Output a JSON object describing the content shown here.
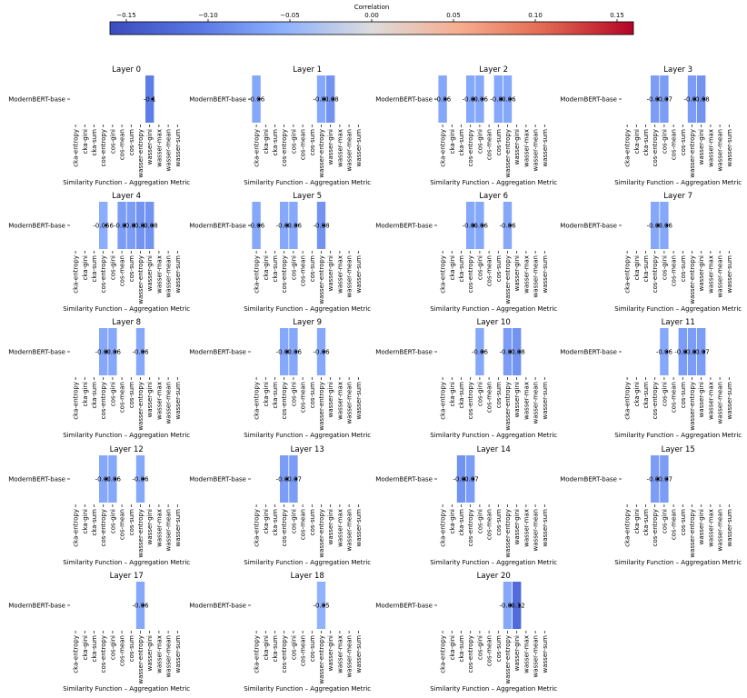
{
  "colorbar": {
    "label": "Correlation",
    "ticks": [
      "−0.15",
      "−0.10",
      "−0.05",
      "0.00",
      "0.05",
      "0.10",
      "0.15"
    ],
    "tick_values": [
      -0.15,
      -0.1,
      -0.05,
      0.0,
      0.05,
      0.1,
      0.15
    ],
    "range": [
      -0.16,
      0.16
    ],
    "colors": [
      "#3b4cc0",
      "#7396f5",
      "#aac7fd",
      "#dddcdc",
      "#f7b89c",
      "#e7745b",
      "#b40426"
    ]
  },
  "chart_data": {
    "type": "heatmap",
    "row_label": "ModernBERT-base",
    "xlabel": "Similarity Function – Aggregation Metric",
    "columns": [
      "cka-entropy",
      "cka-gini",
      "cka-sum",
      "cos-entropy",
      "cos-gini",
      "cos-mean",
      "cos-sum",
      "wasser-entropy",
      "wasser-gini",
      "wasser-max",
      "wasser-mean",
      "wasser-sum"
    ],
    "panels": [
      {
        "title": "Layer 0",
        "cells": [
          null,
          null,
          null,
          null,
          null,
          null,
          null,
          null,
          -0.1,
          null,
          null,
          null
        ]
      },
      {
        "title": "Layer 1",
        "cells": [
          -0.06,
          null,
          null,
          null,
          null,
          null,
          null,
          -0.06,
          -0.08,
          null,
          null,
          null
        ]
      },
      {
        "title": "Layer 2",
        "cells": [
          -0.06,
          null,
          null,
          -0.06,
          -0.06,
          null,
          -0.06,
          -0.06,
          null,
          null,
          null,
          null
        ]
      },
      {
        "title": "Layer 3",
        "cells": [
          null,
          null,
          null,
          -0.07,
          -0.07,
          null,
          null,
          -0.07,
          -0.08,
          null,
          null,
          null
        ]
      },
      {
        "title": "Layer 4",
        "cells": [
          null,
          null,
          null,
          -0.056,
          null,
          -0.07,
          -0.07,
          -0.08,
          -0.08,
          null,
          null,
          null
        ]
      },
      {
        "title": "Layer 5",
        "cells": [
          -0.06,
          null,
          null,
          -0.06,
          -0.06,
          null,
          null,
          -0.08,
          null,
          null,
          null,
          null
        ]
      },
      {
        "title": "Layer 6",
        "cells": [
          null,
          null,
          null,
          -0.06,
          -0.06,
          null,
          null,
          -0.06,
          null,
          null,
          null,
          null
        ]
      },
      {
        "title": "Layer 7",
        "cells": [
          null,
          null,
          null,
          -0.06,
          -0.06,
          null,
          null,
          null,
          null,
          null,
          null,
          null
        ]
      },
      {
        "title": "Layer 8",
        "cells": [
          null,
          null,
          null,
          -0.06,
          -0.06,
          null,
          null,
          -0.06,
          null,
          null,
          null,
          null
        ]
      },
      {
        "title": "Layer 9",
        "cells": [
          null,
          null,
          null,
          -0.06,
          -0.06,
          null,
          null,
          -0.06,
          null,
          null,
          null,
          null
        ]
      },
      {
        "title": "Layer 10",
        "cells": [
          null,
          null,
          null,
          null,
          -0.06,
          null,
          null,
          -0.07,
          -0.08,
          null,
          null,
          null
        ]
      },
      {
        "title": "Layer 11",
        "cells": [
          null,
          null,
          null,
          null,
          -0.06,
          null,
          -0.07,
          -0.07,
          -0.07,
          null,
          null,
          null
        ]
      },
      {
        "title": "Layer 12",
        "cells": [
          null,
          null,
          null,
          -0.06,
          -0.06,
          null,
          null,
          -0.06,
          null,
          null,
          null,
          null
        ]
      },
      {
        "title": "Layer 13",
        "cells": [
          null,
          null,
          null,
          -0.07,
          -0.07,
          null,
          null,
          null,
          null,
          null,
          null,
          null
        ]
      },
      {
        "title": "Layer 14",
        "cells": [
          null,
          null,
          -0.08,
          -0.07,
          null,
          null,
          null,
          null,
          null,
          null,
          null,
          null
        ]
      },
      {
        "title": "Layer 15",
        "cells": [
          null,
          null,
          null,
          -0.07,
          -0.07,
          null,
          null,
          null,
          null,
          null,
          null,
          null
        ]
      },
      {
        "title": "Layer 17",
        "cells": [
          null,
          null,
          null,
          null,
          null,
          null,
          null,
          -0.06,
          null,
          null,
          null,
          null
        ]
      },
      {
        "title": "Layer 18",
        "cells": [
          null,
          null,
          null,
          null,
          null,
          null,
          null,
          -0.05,
          null,
          null,
          null,
          null
        ]
      },
      {
        "title": "Layer 20",
        "cells": [
          null,
          null,
          null,
          null,
          null,
          null,
          null,
          -0.06,
          -0.12,
          null,
          null,
          null
        ]
      }
    ]
  }
}
